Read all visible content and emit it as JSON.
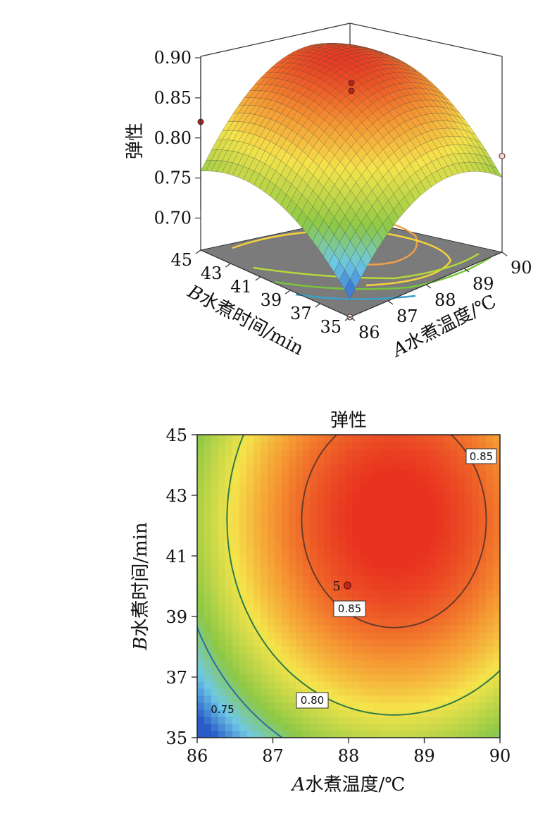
{
  "chart_data": [
    {
      "type": "surface",
      "zlabel": "弹性",
      "xlabel_italic": "A",
      "xlabel": "水煮温度/℃",
      "ylabel_italic": "B",
      "ylabel": "水煮时间/min",
      "x_ticks": [
        "86",
        "87",
        "88",
        "89",
        "90"
      ],
      "y_ticks": [
        "35",
        "37",
        "39",
        "41",
        "43",
        "45"
      ],
      "z_ticks": [
        "0.70",
        "0.75",
        "0.80",
        "0.85",
        "0.90"
      ],
      "xlim": [
        86,
        90
      ],
      "ylim": [
        35,
        45
      ],
      "zlim": [
        0.66,
        0.9
      ],
      "design_points": [
        {
          "x": 88,
          "y": 40,
          "z": 0.87
        },
        {
          "x": 88,
          "y": 40,
          "z": 0.86
        },
        {
          "x": 86,
          "y": 45,
          "z": 0.82
        },
        {
          "x": 90,
          "y": 35,
          "z": 0.78
        },
        {
          "x": 86,
          "y": 35,
          "z": 0.66
        }
      ],
      "colors": {
        "surface_high": "#e8331f",
        "surface_mid": "#f5e24a",
        "surface_low": "#2e6bd1",
        "floor": "#7a7a7a"
      }
    },
    {
      "type": "contour",
      "title": "弹性",
      "xlabel_italic": "A",
      "xlabel": "水煮温度/℃",
      "ylabel_italic": "B",
      "ylabel": "水煮时间/min",
      "x_ticks": [
        "86",
        "87",
        "88",
        "89",
        "90"
      ],
      "y_ticks": [
        "35",
        "37",
        "39",
        "41",
        "43",
        "45"
      ],
      "xlim": [
        86,
        90
      ],
      "ylim": [
        35,
        45
      ],
      "contour_levels": [
        {
          "value": 0.85,
          "labels": [
            "0.85",
            "0.85"
          ]
        },
        {
          "value": 0.8,
          "labels": [
            "0.80"
          ]
        },
        {
          "value": 0.75,
          "labels": [
            "0.75"
          ]
        }
      ],
      "center_point": {
        "x": 88,
        "y": 40,
        "label": "5"
      },
      "colors": {
        "high": "#e8331f",
        "mid": "#f7e64a",
        "low_green": "#8cc63f",
        "low_blue": "#3a6fc9"
      }
    }
  ]
}
